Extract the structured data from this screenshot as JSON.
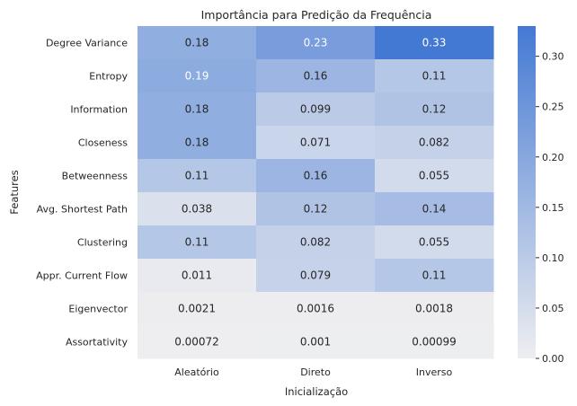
{
  "chart_data": {
    "type": "heatmap",
    "title": "Importância para Predição da Frequência",
    "xlabel": "Inicialização",
    "ylabel": "Features",
    "columns": [
      "Aleatório",
      "Direto",
      "Inverso"
    ],
    "rows": [
      "Degree Variance",
      "Entropy",
      "Information",
      "Closeness",
      "Betweenness",
      "Avg. Shortest Path",
      "Clustering",
      "Appr. Current Flow",
      "Eigenvector",
      "Assortativity"
    ],
    "values": [
      [
        0.18,
        0.23,
        0.33
      ],
      [
        0.19,
        0.16,
        0.11
      ],
      [
        0.18,
        0.099,
        0.12
      ],
      [
        0.18,
        0.071,
        0.082
      ],
      [
        0.11,
        0.16,
        0.055
      ],
      [
        0.038,
        0.12,
        0.14
      ],
      [
        0.11,
        0.082,
        0.055
      ],
      [
        0.011,
        0.079,
        0.11
      ],
      [
        0.0021,
        0.0016,
        0.0018
      ],
      [
        0.00072,
        0.001,
        0.00099
      ]
    ],
    "labels": [
      [
        "0.18",
        "0.23",
        "0.33"
      ],
      [
        "0.19",
        "0.16",
        "0.11"
      ],
      [
        "0.18",
        "0.099",
        "0.12"
      ],
      [
        "0.18",
        "0.071",
        "0.082"
      ],
      [
        "0.11",
        "0.16",
        "0.055"
      ],
      [
        "0.038",
        "0.12",
        "0.14"
      ],
      [
        "0.11",
        "0.082",
        "0.055"
      ],
      [
        "0.011",
        "0.079",
        "0.11"
      ],
      [
        "0.0021",
        "0.0016",
        "0.0018"
      ],
      [
        "0.00072",
        "0.001",
        "0.00099"
      ]
    ],
    "colorbar": {
      "min": 0.0,
      "max": 0.33,
      "ticks": [
        "0.00",
        "0.05",
        "0.10",
        "0.15",
        "0.20",
        "0.25",
        "0.30"
      ],
      "color_low": "#eeeef0",
      "color_high": "#4479d3"
    },
    "grid": false
  }
}
